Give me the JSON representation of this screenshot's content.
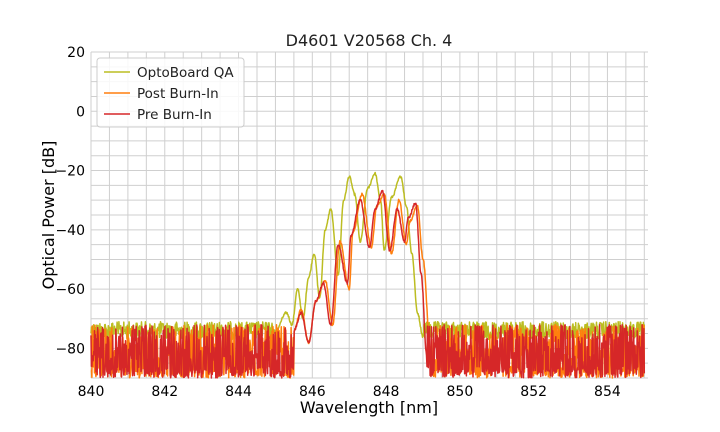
{
  "chart_data": {
    "type": "line",
    "title": "D4601 V20568 Ch. 4",
    "xlabel": "Wavelength [nm]",
    "ylabel": "Optical Power [dB]",
    "xlim": [
      840,
      855.1
    ],
    "ylim": [
      -90,
      20
    ],
    "xticks": [
      840,
      842,
      844,
      846,
      848,
      850,
      852,
      854
    ],
    "yticks": [
      20,
      0,
      -20,
      -40,
      -60,
      -80
    ],
    "xtick_labels": [
      "840",
      "842",
      "844",
      "846",
      "848",
      "850",
      "852",
      "854"
    ],
    "ytick_labels": [
      "20",
      "0",
      "−20",
      "−40",
      "−60",
      "−80"
    ],
    "grid": true,
    "minor_grid": {
      "x_step": 0.5,
      "y_step": 5
    },
    "legend_position": "top-left",
    "series": [
      {
        "name": "OptoBoard QA",
        "color": "#bcbd22",
        "noise_floor": [
          -81,
          -71
        ],
        "signal_range": [
          845.0,
          849.0
        ],
        "x": [
          845.0,
          845.3,
          845.45,
          845.6,
          845.75,
          845.9,
          846.05,
          846.2,
          846.35,
          846.5,
          846.7,
          846.85,
          847.0,
          847.15,
          847.3,
          847.5,
          847.7,
          847.85,
          847.95,
          848.15,
          848.4,
          848.55,
          848.7,
          848.85,
          849.0
        ],
        "y": [
          -74,
          -68,
          -72,
          -60,
          -70,
          -56,
          -48,
          -63,
          -40,
          -33,
          -55,
          -30,
          -22,
          -28,
          -44,
          -26,
          -21,
          -30,
          -47,
          -29,
          -22,
          -32,
          -48,
          -68,
          -76
        ]
      },
      {
        "name": "Post Burn-In",
        "color": "#ff7f0e",
        "noise_floor": [
          -90,
          -72
        ],
        "signal_range": [
          845.5,
          849.2
        ],
        "x": [
          845.5,
          845.7,
          845.9,
          846.1,
          846.35,
          846.55,
          846.75,
          847.0,
          847.1,
          847.35,
          847.6,
          847.75,
          847.95,
          848.15,
          848.35,
          848.55,
          848.65,
          848.85,
          849.0,
          849.2
        ],
        "y": [
          -74,
          -67,
          -78,
          -64,
          -57,
          -72,
          -44,
          -60,
          -41,
          -28,
          -46,
          -32,
          -28,
          -48,
          -30,
          -45,
          -37,
          -32,
          -50,
          -80
        ]
      },
      {
        "name": "Pre Burn-In",
        "color": "#d62728",
        "noise_floor": [
          -90,
          -72
        ],
        "signal_range": [
          845.5,
          849.1
        ],
        "x": [
          845.5,
          845.7,
          845.9,
          846.1,
          846.3,
          846.5,
          846.7,
          846.95,
          847.05,
          847.3,
          847.55,
          847.7,
          847.9,
          848.1,
          848.3,
          848.5,
          848.6,
          848.8,
          848.95,
          849.1
        ],
        "y": [
          -74,
          -68,
          -78,
          -64,
          -58,
          -72,
          -45,
          -58,
          -42,
          -30,
          -46,
          -33,
          -27,
          -47,
          -33,
          -44,
          -36,
          -31,
          -55,
          -82
        ]
      }
    ]
  }
}
